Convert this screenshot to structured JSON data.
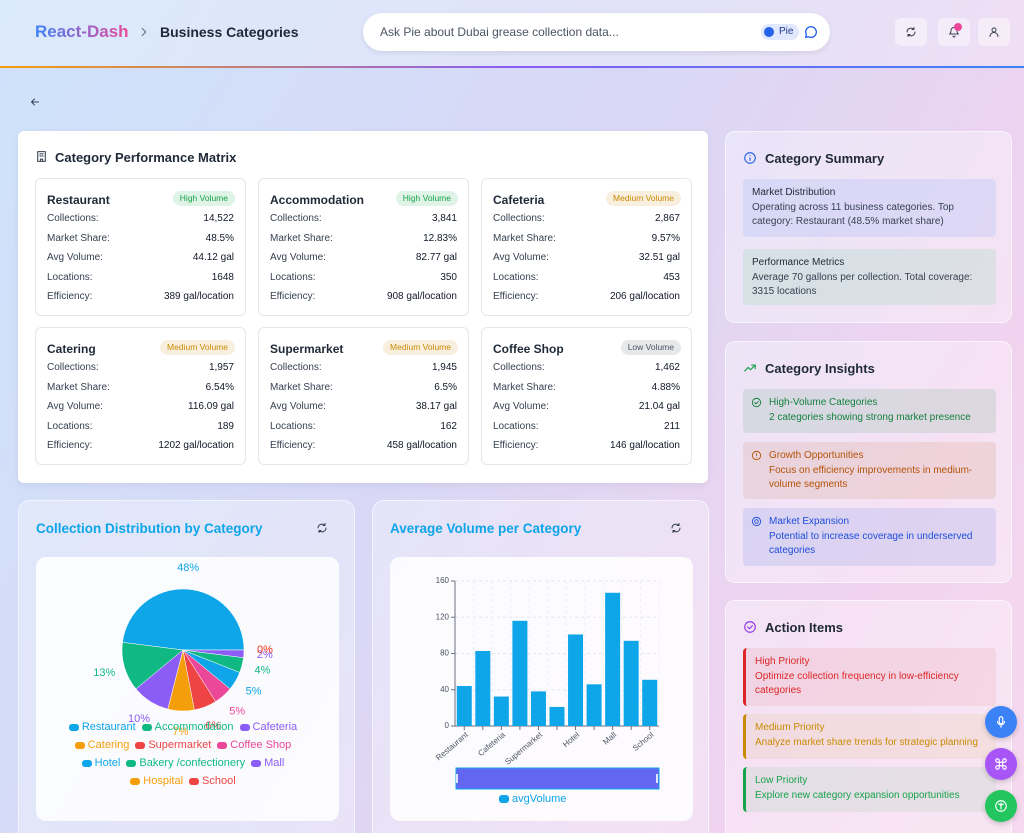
{
  "header": {
    "brand": "React-Dash",
    "page": "Business Categories",
    "search_placeholder": "Ask Pie about Dubai grease collection data...",
    "pie_badge": "Pie"
  },
  "matrix": {
    "title": "Category Performance Matrix",
    "field_labels": [
      "Collections:",
      "Market Share:",
      "Avg Volume:",
      "Locations:",
      "Efficiency:"
    ],
    "cards": [
      {
        "name": "Restaurant",
        "badge": "High Volume",
        "badge_color": "#16a34a",
        "values": [
          "14,522",
          "48.5%",
          "44.12 gal",
          "1648",
          "389 gal/location"
        ]
      },
      {
        "name": "Accommodation",
        "badge": "High Volume",
        "badge_color": "#16a34a",
        "values": [
          "3,841",
          "12.83%",
          "82.77 gal",
          "350",
          "908 gal/location"
        ]
      },
      {
        "name": "Cafeteria",
        "badge": "Medium Volume",
        "badge_color": "#ca8a04",
        "values": [
          "2,867",
          "9.57%",
          "32.51 gal",
          "453",
          "206 gal/location"
        ]
      },
      {
        "name": "Catering",
        "badge": "Medium Volume",
        "badge_color": "#ca8a04",
        "values": [
          "1,957",
          "6.54%",
          "116.09 gal",
          "189",
          "1202 gal/location"
        ]
      },
      {
        "name": "Supermarket",
        "badge": "Medium Volume",
        "badge_color": "#ca8a04",
        "values": [
          "1,945",
          "6.5%",
          "38.17 gal",
          "162",
          "458 gal/location"
        ]
      },
      {
        "name": "Coffee Shop",
        "badge": "Low Volume",
        "badge_color": "#4b5563",
        "values": [
          "1,462",
          "4.88%",
          "21.04 gal",
          "211",
          "146 gal/location"
        ]
      }
    ]
  },
  "summary": {
    "title": "Category Summary",
    "items": [
      {
        "title": "Market Distribution",
        "text": "Operating across 11 business categories. Top category: Restaurant (48.5% market share)",
        "color": "#3b82f6"
      },
      {
        "title": "Performance Metrics",
        "text": "Average 70 gallons per collection. Total coverage: 3315 locations",
        "color": "#22c55e"
      }
    ]
  },
  "insights": {
    "title": "Category Insights",
    "items": [
      {
        "title": "High-Volume Categories",
        "text": "2 categories showing strong market presence",
        "color": "#15803d"
      },
      {
        "title": "Growth Opportunities",
        "text": "Focus on efficiency improvements in medium-volume segments",
        "color": "#b45309"
      },
      {
        "title": "Market Expansion",
        "text": "Potential to increase coverage in underserved categories",
        "color": "#1d4ed8"
      }
    ]
  },
  "actions": {
    "title": "Action Items",
    "items": [
      {
        "title": "High Priority",
        "text": "Optimize collection frequency in low-efficiency categories",
        "color": "#dc2626"
      },
      {
        "title": "Medium Priority",
        "text": "Analyze market share trends for strategic planning",
        "color": "#ca8a04"
      },
      {
        "title": "Low Priority",
        "text": "Explore new category expansion opportunities",
        "color": "#16a34a"
      }
    ]
  },
  "chart_data": [
    {
      "type": "pie",
      "title": "Collection Distribution by Category",
      "categories": [
        "Restaurant",
        "Accommodation",
        "Cafeteria",
        "Catering",
        "Supermarket",
        "Coffee Shop",
        "Hotel",
        "Bakery /confectionery",
        "Mall",
        "Hospital",
        "School"
      ],
      "values": [
        48,
        13,
        10,
        7,
        6,
        5,
        5,
        4,
        2,
        0,
        0
      ],
      "value_labels": [
        "48%",
        "13%",
        "10%",
        "7%",
        "6%",
        "5%",
        "5%",
        "4%",
        "2%",
        "0%",
        "0%"
      ],
      "colors": [
        "#0ea5e9",
        "#10b981",
        "#8b5cf6",
        "#f59e0b",
        "#ef4444",
        "#ec4899",
        "#0ea5e9",
        "#10b981",
        "#8b5cf6",
        "#f59e0b",
        "#ef4444"
      ]
    },
    {
      "type": "bar",
      "title": "Average Volume per Category",
      "categories": [
        "Restaurant",
        null,
        "Cafeteria",
        null,
        "Supermarket",
        null,
        "Hotel",
        null,
        "Mall",
        null,
        "School"
      ],
      "series": [
        {
          "name": "avgVolume",
          "color": "#0ea5e9",
          "values": [
            44.12,
            82.77,
            32.51,
            116.09,
            38.17,
            21.04,
            101,
            46,
            147,
            94,
            51
          ]
        }
      ],
      "ylim": [
        0,
        160
      ],
      "yticks": [
        0,
        40,
        80,
        120,
        160
      ],
      "grid": true
    }
  ]
}
